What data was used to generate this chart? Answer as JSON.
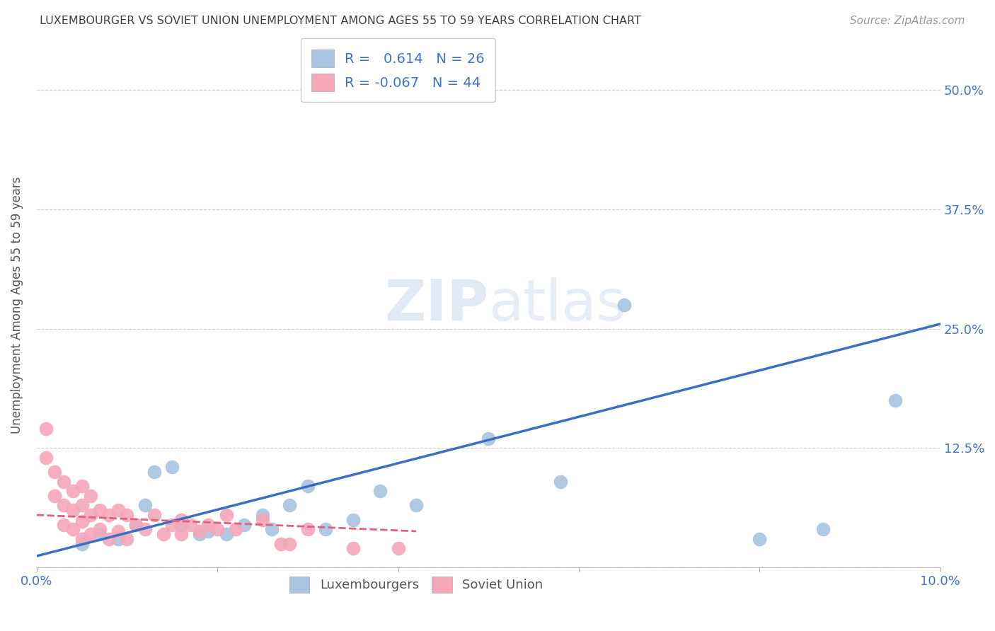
{
  "title": "LUXEMBOURGER VS SOVIET UNION UNEMPLOYMENT AMONG AGES 55 TO 59 YEARS CORRELATION CHART",
  "source": "Source: ZipAtlas.com",
  "ylabel": "Unemployment Among Ages 55 to 59 years",
  "xlim": [
    0.0,
    0.1
  ],
  "ylim": [
    0.0,
    0.55
  ],
  "xticks": [
    0.0,
    0.02,
    0.04,
    0.06,
    0.08,
    0.1
  ],
  "xticklabels": [
    "0.0%",
    "",
    "",
    "",
    "",
    "10.0%"
  ],
  "yticks": [
    0.0,
    0.125,
    0.25,
    0.375,
    0.5
  ],
  "yticklabels": [
    "",
    "12.5%",
    "25.0%",
    "37.5%",
    "50.0%"
  ],
  "lux_R": 0.614,
  "lux_N": 26,
  "sov_R": -0.067,
  "sov_N": 44,
  "lux_color": "#a8c4e0",
  "sov_color": "#f4a7b9",
  "lux_line_color": "#3a6fc4",
  "sov_line_color": "#e06080",
  "background_color": "#ffffff",
  "grid_color": "#cccccc",
  "title_color": "#404040",
  "tick_label_color": "#4472c4",
  "lux_scatter_x": [
    0.005,
    0.007,
    0.009,
    0.011,
    0.012,
    0.013,
    0.015,
    0.016,
    0.018,
    0.019,
    0.021,
    0.023,
    0.025,
    0.026,
    0.028,
    0.03,
    0.032,
    0.035,
    0.038,
    0.042,
    0.05,
    0.058,
    0.065,
    0.08,
    0.087,
    0.095
  ],
  "lux_scatter_y": [
    0.025,
    0.035,
    0.03,
    0.045,
    0.065,
    0.1,
    0.105,
    0.045,
    0.035,
    0.038,
    0.035,
    0.045,
    0.055,
    0.04,
    0.065,
    0.085,
    0.04,
    0.05,
    0.08,
    0.065,
    0.135,
    0.09,
    0.275,
    0.03,
    0.04,
    0.175
  ],
  "sov_scatter_x": [
    0.001,
    0.001,
    0.002,
    0.002,
    0.003,
    0.003,
    0.003,
    0.004,
    0.004,
    0.004,
    0.005,
    0.005,
    0.005,
    0.005,
    0.006,
    0.006,
    0.006,
    0.007,
    0.007,
    0.008,
    0.008,
    0.009,
    0.009,
    0.01,
    0.01,
    0.011,
    0.012,
    0.013,
    0.014,
    0.015,
    0.016,
    0.016,
    0.017,
    0.018,
    0.019,
    0.02,
    0.021,
    0.022,
    0.025,
    0.027,
    0.028,
    0.03,
    0.035,
    0.04
  ],
  "sov_scatter_y": [
    0.145,
    0.115,
    0.1,
    0.075,
    0.09,
    0.065,
    0.045,
    0.08,
    0.06,
    0.04,
    0.085,
    0.065,
    0.048,
    0.03,
    0.075,
    0.055,
    0.035,
    0.06,
    0.04,
    0.055,
    0.03,
    0.06,
    0.038,
    0.055,
    0.03,
    0.045,
    0.04,
    0.055,
    0.035,
    0.045,
    0.05,
    0.035,
    0.045,
    0.038,
    0.045,
    0.04,
    0.055,
    0.04,
    0.05,
    0.025,
    0.025,
    0.04,
    0.02,
    0.02
  ],
  "lux_line_x": [
    0.0,
    0.1
  ],
  "lux_line_y": [
    0.012,
    0.255
  ],
  "sov_line_x": [
    0.0,
    0.042
  ],
  "sov_line_y": [
    0.055,
    0.038
  ]
}
